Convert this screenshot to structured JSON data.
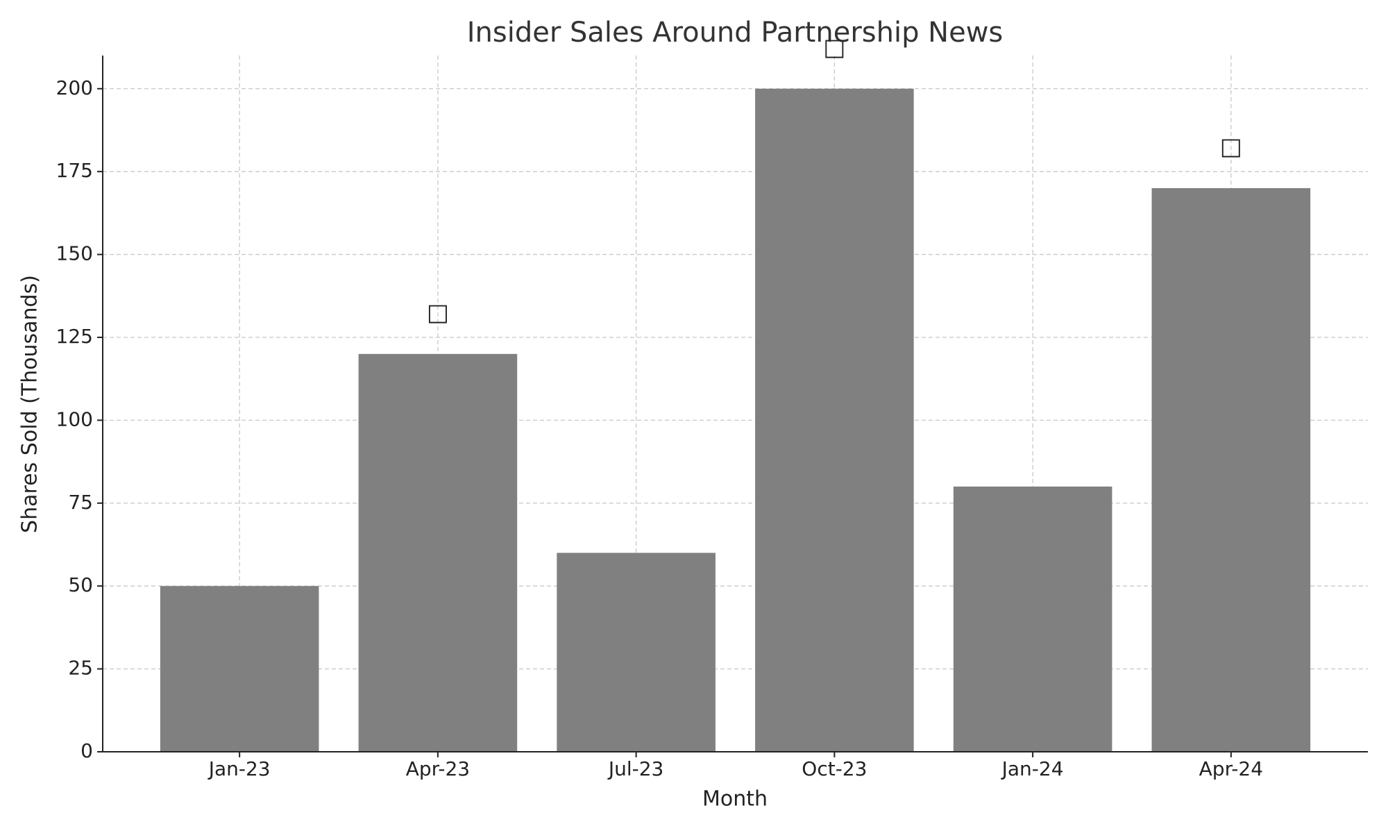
{
  "chart_data": {
    "type": "bar",
    "title": "Insider Sales Around Partnership News",
    "x_label": "Month",
    "y_label": "Shares Sold (Thousands)",
    "categories": [
      "Jan-23",
      "Apr-23",
      "Jul-23",
      "Oct-23",
      "Jan-24",
      "Apr-24"
    ],
    "values": [
      50,
      120,
      60,
      200,
      80,
      170
    ],
    "color": "#808080",
    "ylim": [
      0,
      210
    ],
    "yticks": [
      0,
      25,
      50,
      75,
      100,
      125,
      150,
      175,
      200
    ],
    "grid": true,
    "annotations": [
      {
        "category": "Apr-23",
        "text": "□"
      },
      {
        "category": "Oct-23",
        "text": "□"
      },
      {
        "category": "Apr-24",
        "text": "□"
      }
    ]
  }
}
